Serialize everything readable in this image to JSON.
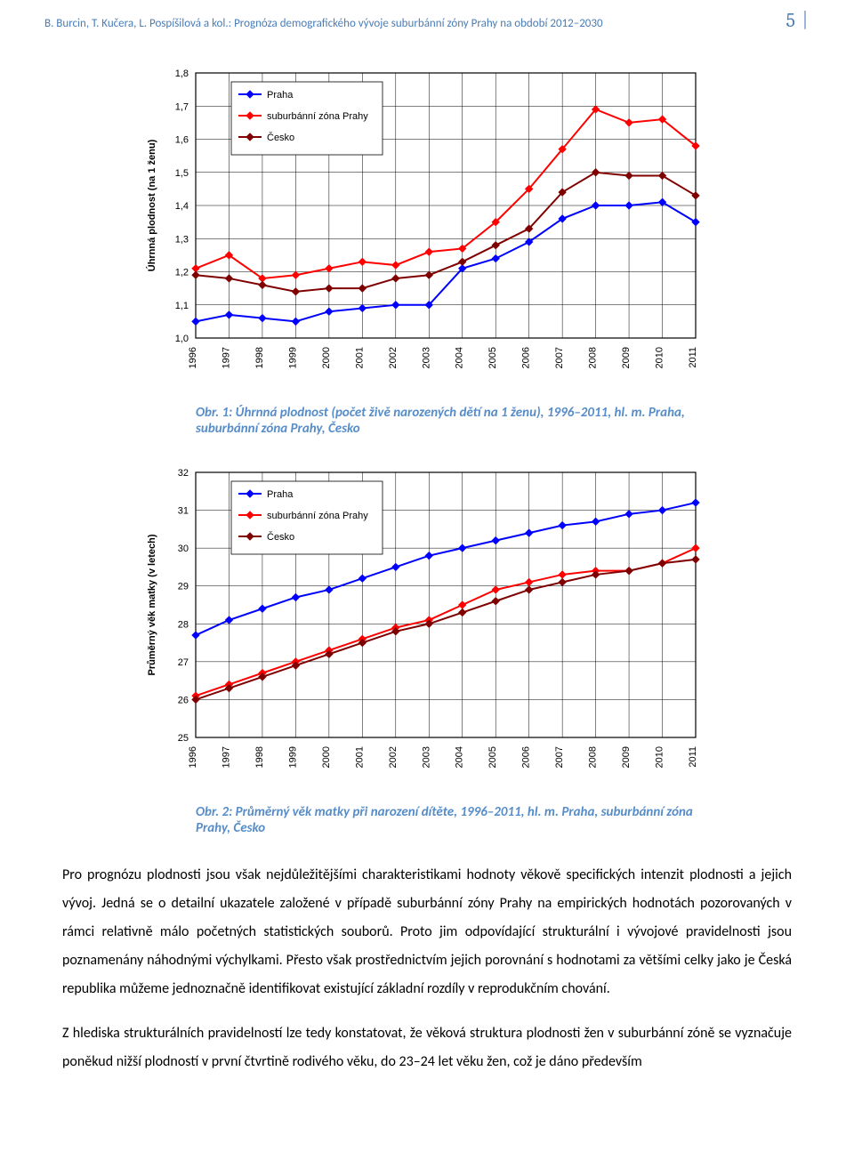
{
  "header": {
    "authors": "B. Burcin, T. Kučera, L. Pospíšilová a kol.: Prognóza demografického vývoje suburbánní zóny Prahy na období 2012–2030",
    "page_number": "5",
    "header_color": "#4a7db8"
  },
  "chart1": {
    "type": "line",
    "title": "",
    "xlabel": "",
    "ylabel": "Úhrnná plodnost (na 1 ženu)",
    "ylabel_fontsize": 11,
    "years": [
      "1996",
      "1997",
      "1998",
      "1999",
      "2000",
      "2001",
      "2002",
      "2003",
      "2004",
      "2005",
      "2006",
      "2007",
      "2008",
      "2009",
      "2010",
      "2011"
    ],
    "ylim": [
      1.0,
      1.8
    ],
    "ytick_step": 0.1,
    "yticks": [
      "1,0",
      "1,1",
      "1,2",
      "1,3",
      "1,4",
      "1,5",
      "1,6",
      "1,7",
      "1,8"
    ],
    "background_color": "#ffffff",
    "grid_color": "#000000",
    "border_color": "#000000",
    "line_width": 2,
    "marker_size": 4,
    "series": [
      {
        "name": "Praha",
        "color": "#0000ff",
        "marker": "diamond",
        "values": [
          1.05,
          1.07,
          1.06,
          1.05,
          1.08,
          1.09,
          1.1,
          1.1,
          1.21,
          1.24,
          1.29,
          1.36,
          1.4,
          1.4,
          1.41,
          1.35
        ]
      },
      {
        "name": "suburbánní zóna Prahy",
        "color": "#ff0000",
        "marker": "diamond",
        "values": [
          1.21,
          1.25,
          1.18,
          1.19,
          1.21,
          1.23,
          1.22,
          1.26,
          1.27,
          1.35,
          1.45,
          1.57,
          1.69,
          1.65,
          1.66,
          1.58
        ]
      },
      {
        "name": "Česko",
        "color": "#7f0000",
        "marker": "diamond",
        "values": [
          1.19,
          1.18,
          1.16,
          1.14,
          1.15,
          1.15,
          1.18,
          1.19,
          1.23,
          1.28,
          1.33,
          1.44,
          1.5,
          1.49,
          1.49,
          1.43
        ]
      }
    ],
    "legend_position": "top-left",
    "legend_fontsize": 11
  },
  "caption1": "Obr. 1: Úhrnná plodnost (počet živě narozených dětí na 1 ženu), 1996–2011, hl. m. Praha, suburbánní zóna Prahy, Česko",
  "chart2": {
    "type": "line",
    "title": "",
    "xlabel": "",
    "ylabel": "Průměrný věk matky (v letech)",
    "ylabel_fontsize": 11,
    "years": [
      "1996",
      "1997",
      "1998",
      "1999",
      "2000",
      "2001",
      "2002",
      "2003",
      "2004",
      "2005",
      "2006",
      "2007",
      "2008",
      "2009",
      "2010",
      "2011"
    ],
    "ylim": [
      25,
      32
    ],
    "ytick_step": 1,
    "yticks": [
      "25",
      "26",
      "27",
      "28",
      "29",
      "30",
      "31",
      "32"
    ],
    "background_color": "#ffffff",
    "grid_color": "#000000",
    "border_color": "#000000",
    "line_width": 2,
    "marker_size": 4,
    "series": [
      {
        "name": "Praha",
        "color": "#0000ff",
        "marker": "diamond",
        "values": [
          27.7,
          28.1,
          28.4,
          28.7,
          28.9,
          29.2,
          29.5,
          29.8,
          30.0,
          30.2,
          30.4,
          30.6,
          30.7,
          30.9,
          31.0,
          31.2
        ]
      },
      {
        "name": "suburbánní zóna Prahy",
        "color": "#ff0000",
        "marker": "diamond",
        "values": [
          26.1,
          26.4,
          26.7,
          27.0,
          27.3,
          27.6,
          27.9,
          28.1,
          28.5,
          28.9,
          29.1,
          29.3,
          29.4,
          29.4,
          29.6,
          30.0
        ]
      },
      {
        "name": "Česko",
        "color": "#7f0000",
        "marker": "diamond",
        "values": [
          26.0,
          26.3,
          26.6,
          26.9,
          27.2,
          27.5,
          27.8,
          28.0,
          28.3,
          28.6,
          28.9,
          29.1,
          29.3,
          29.4,
          29.6,
          29.7
        ]
      }
    ],
    "legend_position": "top-left",
    "legend_fontsize": 11
  },
  "caption2": "Obr. 2: Průměrný věk matky při narození dítěte, 1996–2011, hl. m. Praha, suburbánní zóna Prahy, Česko",
  "paragraphs": [
    "Pro prognózu plodnosti jsou však nejdůležitějšími charakteristikami hodnoty věkově specifických intenzit plodnosti a jejich vývoj. Jedná se o detailní ukazatele založené v případě suburbánní zóny Prahy na empirických hodnotách pozorovaných v rámci relativně málo početných statistických souborů. Proto jim odpovídající strukturální i vývojové pravidelnosti jsou poznamenány náhodnými výchylkami. Přesto však prostřednictvím jejich porovnání s hodnotami za většími celky jako je Česká republika můžeme jednoznačně identifikovat existující základní rozdíly v reprodukčním chování.",
    "Z hlediska strukturálních pravidelností lze tedy konstatovat, že věková struktura plodnosti žen v suburbánní zóně se vyznačuje poněkud nižší plodností v první čtvrtině rodivého věku, do 23–24 let věku žen, což je dáno především"
  ]
}
